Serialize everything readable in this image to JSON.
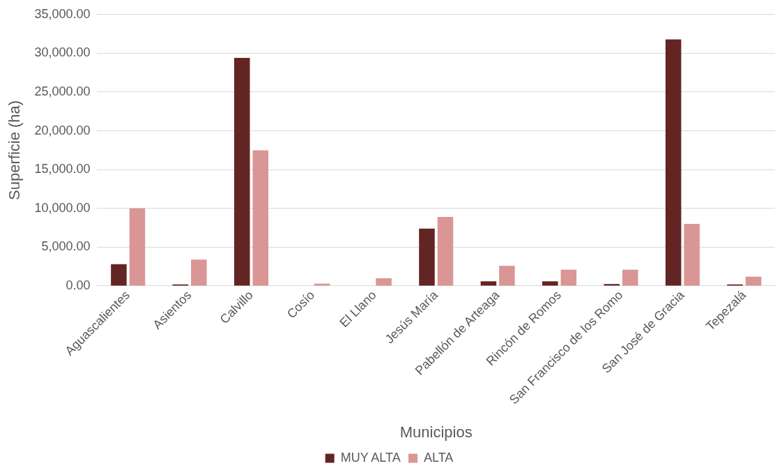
{
  "chart_data": {
    "type": "bar",
    "xlabel": "Municipios",
    "ylabel": "Superficie (ha)",
    "categories": [
      "Aguascalientes",
      "Asientos",
      "Calvillo",
      "Cosío",
      "El Llano",
      "Jesús María",
      "Pabellón de Arteaga",
      "Rincón de Romos",
      "San Francisco de los Romo",
      "San José de Gracia",
      "Tepezalá"
    ],
    "series": [
      {
        "name": "MUY ALTA",
        "color": "#632523",
        "values": [
          2800,
          200,
          29400,
          0,
          0,
          7400,
          600,
          600,
          250,
          31800,
          200
        ]
      },
      {
        "name": "ALTA",
        "color": "#d99694",
        "values": [
          10000,
          3400,
          17500,
          300,
          1000,
          8900,
          2600,
          2100,
          2100,
          8000,
          1200
        ]
      }
    ],
    "ylim": [
      0,
      35000
    ],
    "yticks": [
      {
        "value": 0,
        "label": "0.00"
      },
      {
        "value": 5000,
        "label": "5,000.00"
      },
      {
        "value": 10000,
        "label": "10,000.00"
      },
      {
        "value": 15000,
        "label": "15,000.00"
      },
      {
        "value": 20000,
        "label": "20,000.00"
      },
      {
        "value": 25000,
        "label": "25,000.00"
      },
      {
        "value": 30000,
        "label": "30,000.00"
      },
      {
        "value": 35000,
        "label": "35,000.00"
      }
    ],
    "grid": "y",
    "legend": "bottom"
  }
}
